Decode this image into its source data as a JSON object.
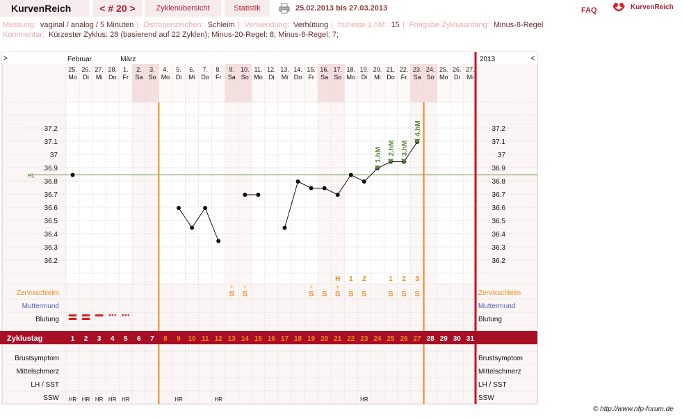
{
  "header": {
    "app_title": "KurvenReich",
    "cycle_nav": "< # 20 >",
    "tab_overview": "Zyklenübersicht",
    "tab_stats": "Statistik",
    "date_range": "25.02.2013 bis 27.03.2013",
    "faq": "FAQ",
    "logo_text": "KurvenReich"
  },
  "info": {
    "messung_label": "Messung:",
    "messung_value": "vaginal / analog / 5 Minuten",
    "oestrogen_label": "Östrogenzeichen:",
    "oestrogen_value": "Schleim",
    "verwendung_label": "Verwendung:",
    "verwendung_value": "Verhütung",
    "hm_label": "früheste 1.hM:",
    "hm_value": "15",
    "freigabe_label": "Freigabe Zyklusanfang:",
    "freigabe_value": "Minus-8-Regel",
    "kommentar_label": "Kommentar:",
    "kommentar_value": "Kürzester Zyklus: 28 (basierend auf 22 Zyklen);  Minus-20-Regel: 8; Minus-8-Regel: 7;"
  },
  "chart_nav": {
    "prev": ">",
    "next": "<",
    "year": "2013"
  },
  "months": [
    {
      "day_index": 0,
      "label": "Februar"
    },
    {
      "day_index": 4,
      "label": "März"
    }
  ],
  "days": [
    {
      "date": "25.",
      "weekday": "Mo"
    },
    {
      "date": "26.",
      "weekday": "Di"
    },
    {
      "date": "27.",
      "weekday": "Mi"
    },
    {
      "date": "28.",
      "weekday": "Do"
    },
    {
      "date": "1.",
      "weekday": "Fr"
    },
    {
      "date": "2.",
      "weekday": "Sa"
    },
    {
      "date": "3.",
      "weekday": "So"
    },
    {
      "date": "4.",
      "weekday": "Mo"
    },
    {
      "date": "5.",
      "weekday": "Di"
    },
    {
      "date": "6.",
      "weekday": "Mi"
    },
    {
      "date": "7.",
      "weekday": "Do"
    },
    {
      "date": "8.",
      "weekday": "Fr"
    },
    {
      "date": "9.",
      "weekday": "Sa"
    },
    {
      "date": "10.",
      "weekday": "So"
    },
    {
      "date": "11.",
      "weekday": "Mo"
    },
    {
      "date": "12.",
      "weekday": "Di"
    },
    {
      "date": "13.",
      "weekday": "Mi"
    },
    {
      "date": "14.",
      "weekday": "Do"
    },
    {
      "date": "15.",
      "weekday": "Fr"
    },
    {
      "date": "16.",
      "weekday": "Sa"
    },
    {
      "date": "17.",
      "weekday": "So"
    },
    {
      "date": "18.",
      "weekday": "Mo"
    },
    {
      "date": "19.",
      "weekday": "Di"
    },
    {
      "date": "20.",
      "weekday": "Mi"
    },
    {
      "date": "21.",
      "weekday": "Do"
    },
    {
      "date": "22.",
      "weekday": "Fr"
    },
    {
      "date": "23.",
      "weekday": "Sa"
    },
    {
      "date": "24.",
      "weekday": "So"
    },
    {
      "date": "25.",
      "weekday": "Mo"
    },
    {
      "date": "26.",
      "weekday": "Di"
    },
    {
      "date": "27.",
      "weekday": "Mi"
    }
  ],
  "row_labels": {
    "zervix": "Zervixschleim",
    "muttermund": "Muttermund",
    "blutung": "Blutung",
    "zyklustag": "Zyklustag",
    "brust": "Brustsymptom",
    "mittel": "Mittelschmerz",
    "lh": "LH / SST",
    "ssw": "SSW"
  },
  "chart_data": {
    "type": "line",
    "y_ticks": [
      "36.2",
      "36.3",
      "36.4",
      "36.5",
      "36.6",
      "36.7",
      "36.8",
      "36.9",
      "37",
      "37.1",
      "37.2"
    ],
    "ylim": [
      36.1,
      37.3
    ],
    "hl_label": "HL",
    "hl_value": 36.85,
    "temperatures": [
      36.85,
      null,
      null,
      null,
      null,
      null,
      null,
      null,
      36.6,
      36.45,
      36.6,
      36.35,
      null,
      36.7,
      36.7,
      null,
      36.45,
      36.8,
      36.75,
      36.75,
      36.7,
      36.85,
      36.8,
      36.9,
      36.95,
      36.95,
      37.1,
      null,
      null,
      null,
      null
    ],
    "markers": [
      {
        "day_index": 23,
        "label": "1.hM"
      },
      {
        "day_index": 24,
        "label": "2.hM"
      },
      {
        "day_index": 25,
        "label": "3.hM"
      },
      {
        "day_index": 26,
        "label": "4.hM"
      }
    ],
    "peak_labels": [
      {
        "day_index": 20,
        "label": "H"
      },
      {
        "day_index": 21,
        "label": "1"
      },
      {
        "day_index": 22,
        "label": "2"
      },
      {
        "day_index": 24,
        "label": "1"
      },
      {
        "day_index": 25,
        "label": "2"
      },
      {
        "day_index": 26,
        "label": "3"
      }
    ],
    "zervix": [
      "",
      "",
      "",
      "",
      "",
      "",
      "",
      "",
      "",
      "",
      "",
      "",
      "S+",
      "S+",
      "",
      "",
      "",
      "",
      "S+",
      "S",
      "S+",
      "S",
      "S",
      "",
      "S",
      "S",
      "S",
      "",
      "",
      "",
      ""
    ],
    "blutung": [
      {
        "day_index": 0,
        "type": "heavy"
      },
      {
        "day_index": 1,
        "type": "heavy"
      },
      {
        "day_index": 2,
        "type": "normal"
      },
      {
        "day_index": 3,
        "type": "light"
      },
      {
        "day_index": 4,
        "type": "light"
      }
    ],
    "cycle_days": [
      "1",
      "2",
      "3",
      "4",
      "5",
      "6",
      "7",
      "8",
      "9",
      "10",
      "11",
      "12",
      "13",
      "14",
      "15",
      "16",
      "17",
      "18",
      "19",
      "20",
      "21",
      "22",
      "23",
      "24",
      "25",
      "26",
      "27",
      "28",
      "29",
      "30",
      "31"
    ],
    "ssw": [
      "HR",
      "HR",
      "HR",
      "HR",
      "HR",
      "",
      "",
      "",
      "HR",
      "",
      "",
      "HR",
      "",
      "",
      "",
      "",
      "",
      "",
      "",
      "",
      "",
      "",
      "HR",
      "",
      "",
      "",
      "",
      "",
      "",
      "",
      ""
    ],
    "colors": {
      "accent": "#b01e32",
      "orange": "#f08a1e",
      "green": "#5c8a3a",
      "blue": "#4a5cb0"
    }
  },
  "footer": {
    "copyright": "© http://www.nfp-forum.de"
  }
}
